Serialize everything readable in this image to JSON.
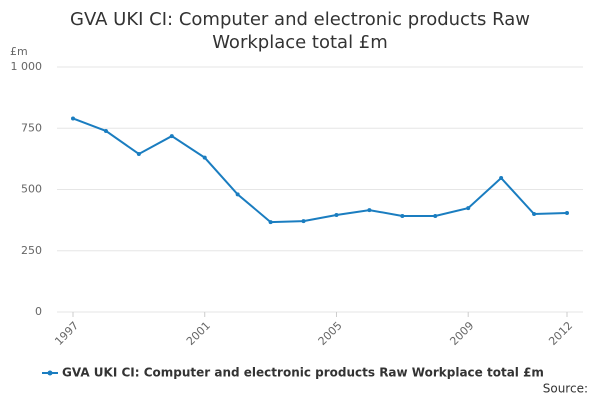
{
  "chart_data": {
    "type": "line",
    "title": "GVA UKI CI: Computer and electronic products Raw Workplace total £m",
    "y_label": "£m",
    "source": "Source:",
    "x": [
      1997,
      1998,
      1999,
      2000,
      2001,
      2002,
      2003,
      2004,
      2005,
      2006,
      2007,
      2008,
      2009,
      2010,
      2011,
      2012
    ],
    "series": [
      {
        "name": "GVA UKI CI: Computer and electronic products Raw Workplace total £m",
        "color": "#1a7dc0",
        "values": [
          790,
          739,
          645,
          718,
          630,
          480,
          367,
          371,
          396,
          416,
          392,
          392,
          424,
          547,
          400,
          404
        ]
      }
    ],
    "xlim": [
      1997,
      2012
    ],
    "xticks": [
      1997,
      2001,
      2005,
      2009,
      2012
    ],
    "ylim": [
      0,
      1000
    ],
    "yticks": [
      0,
      250,
      500,
      750,
      {
        "value": 1000,
        "label": "1 000"
      }
    ],
    "grid": true,
    "legend": "bottom"
  }
}
